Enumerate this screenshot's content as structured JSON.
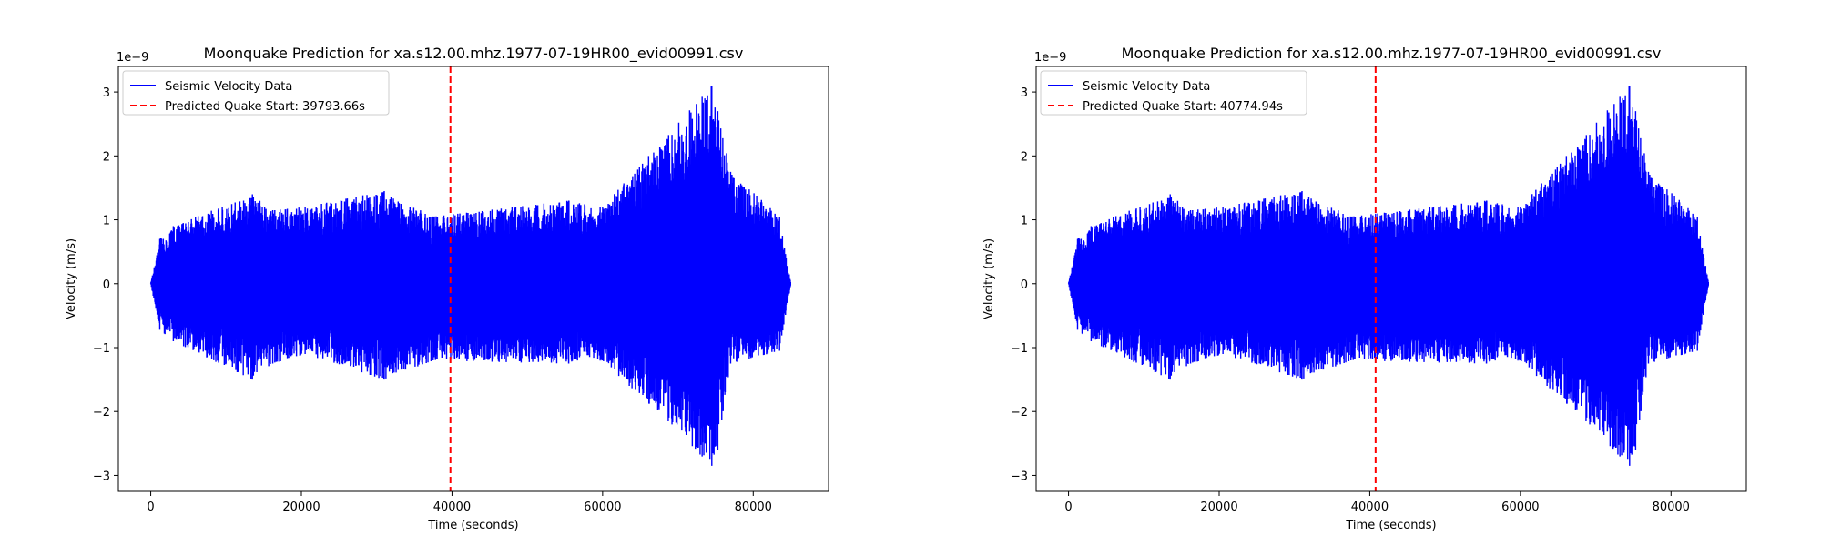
{
  "chart_data": [
    {
      "type": "line",
      "title": "Moonquake Prediction for xa.s12.00.mhz.1977-07-19HR00_evid00991.csv",
      "xlabel": "Time (seconds)",
      "ylabel": "Velocity (m/s)",
      "y_scale_label": "1e−9",
      "xlim": [
        -4300,
        90000
      ],
      "ylim": [
        -3.25,
        3.4
      ],
      "x_ticks": [
        0,
        20000,
        40000,
        60000,
        80000
      ],
      "x_tick_labels": [
        "0",
        "20000",
        "40000",
        "60000",
        "80000"
      ],
      "y_ticks": [
        -3,
        -2,
        -1,
        0,
        1,
        2,
        3
      ],
      "y_tick_labels": [
        "−3",
        "−2",
        "−1",
        "0",
        "1",
        "2",
        "3"
      ],
      "grid": false,
      "legend_position": "top-left",
      "series": [
        {
          "name": "Seismic Velocity Data",
          "color": "#0000ff",
          "style": "solid",
          "kind": "seismic-trace",
          "x_range": [
            0,
            85000
          ],
          "units": "1e-9 m/s",
          "envelope_points": [
            {
              "t": 0,
              "max": 0.0,
              "min": 0.0
            },
            {
              "t": 1200,
              "max": 0.7,
              "min": -0.72
            },
            {
              "t": 3000,
              "max": 0.9,
              "min": -0.9
            },
            {
              "t": 13500,
              "max": 1.4,
              "min": -1.5
            },
            {
              "t": 16200,
              "max": 1.15,
              "min": -1.25
            },
            {
              "t": 20500,
              "max": 1.2,
              "min": -1.1
            },
            {
              "t": 31000,
              "max": 1.45,
              "min": -1.5
            },
            {
              "t": 37500,
              "max": 1.05,
              "min": -1.2
            },
            {
              "t": 55500,
              "max": 1.3,
              "min": -1.25
            },
            {
              "t": 60000,
              "max": 1.2,
              "min": -1.2
            },
            {
              "t": 74500,
              "max": 3.1,
              "min": -2.85
            },
            {
              "t": 75300,
              "max": 2.7,
              "min": -2.6
            },
            {
              "t": 77000,
              "max": 1.75,
              "min": -1.25
            },
            {
              "t": 83500,
              "max": 1.05,
              "min": -1.05
            },
            {
              "t": 85000,
              "max": 0.0,
              "min": 0.0
            }
          ]
        },
        {
          "name": "Predicted Quake Start: 39793.66s",
          "color": "#ff0000",
          "style": "dashed",
          "kind": "vertical-line",
          "x": 39793.66
        }
      ]
    },
    {
      "type": "line",
      "title": "Moonquake Prediction for xa.s12.00.mhz.1977-07-19HR00_evid00991.csv",
      "xlabel": "Time (seconds)",
      "ylabel": "Velocity (m/s)",
      "y_scale_label": "1e−9",
      "xlim": [
        -4300,
        90000
      ],
      "ylim": [
        -3.25,
        3.4
      ],
      "x_ticks": [
        0,
        20000,
        40000,
        60000,
        80000
      ],
      "x_tick_labels": [
        "0",
        "20000",
        "40000",
        "60000",
        "80000"
      ],
      "y_ticks": [
        -3,
        -2,
        -1,
        0,
        1,
        2,
        3
      ],
      "y_tick_labels": [
        "−3",
        "−2",
        "−1",
        "0",
        "1",
        "2",
        "3"
      ],
      "grid": false,
      "legend_position": "top-left",
      "series": [
        {
          "name": "Seismic Velocity Data",
          "color": "#0000ff",
          "style": "solid",
          "kind": "seismic-trace",
          "x_range": [
            0,
            85000
          ],
          "units": "1e-9 m/s",
          "envelope_points": [
            {
              "t": 0,
              "max": 0.0,
              "min": 0.0
            },
            {
              "t": 1200,
              "max": 0.7,
              "min": -0.72
            },
            {
              "t": 3000,
              "max": 0.9,
              "min": -0.9
            },
            {
              "t": 13500,
              "max": 1.4,
              "min": -1.5
            },
            {
              "t": 16200,
              "max": 1.15,
              "min": -1.25
            },
            {
              "t": 20500,
              "max": 1.2,
              "min": -1.1
            },
            {
              "t": 31000,
              "max": 1.45,
              "min": -1.5
            },
            {
              "t": 37500,
              "max": 1.05,
              "min": -1.2
            },
            {
              "t": 55500,
              "max": 1.3,
              "min": -1.25
            },
            {
              "t": 60000,
              "max": 1.2,
              "min": -1.2
            },
            {
              "t": 74500,
              "max": 3.1,
              "min": -2.85
            },
            {
              "t": 75300,
              "max": 2.7,
              "min": -2.6
            },
            {
              "t": 77000,
              "max": 1.75,
              "min": -1.25
            },
            {
              "t": 83500,
              "max": 1.05,
              "min": -1.05
            },
            {
              "t": 85000,
              "max": 0.0,
              "min": 0.0
            }
          ]
        },
        {
          "name": "Predicted Quake Start: 40774.94s",
          "color": "#ff0000",
          "style": "dashed",
          "kind": "vertical-line",
          "x": 40774.94
        }
      ]
    }
  ]
}
